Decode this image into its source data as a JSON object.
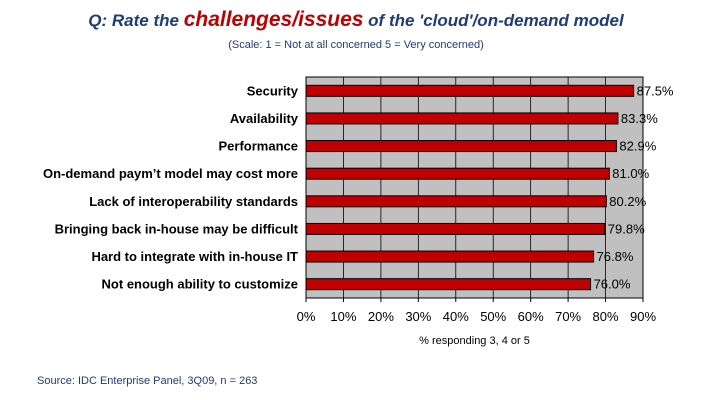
{
  "header": {
    "title_prefix": "Q: Rate the ",
    "title_highlight": "challenges/issues",
    "title_suffix": " of the 'cloud'/on-demand model",
    "subtitle": "(Scale: 1 = Not at all concerned  5 = Very concerned)"
  },
  "source": "Source: IDC Enterprise Panel, 3Q09, n = 263",
  "colors": {
    "bar": "#c00000",
    "plot_bg": "#c0c0c0",
    "title": "#1f3b7a",
    "highlight": "#c00000"
  },
  "chart_data": {
    "type": "bar",
    "orientation": "horizontal",
    "categories": [
      "Security",
      "Availability",
      "Performance",
      "On-demand paym’t model may cost more",
      "Lack of interoperability standards",
      "Bringing back in-house may be difficult",
      "Hard to integrate with in-house IT",
      "Not enough ability to customize"
    ],
    "values": [
      87.5,
      83.3,
      82.9,
      81.0,
      80.2,
      79.8,
      76.8,
      76.0
    ],
    "value_labels": [
      "87.5%",
      "83.3%",
      "82.9%",
      "81.0%",
      "80.2%",
      "79.8%",
      "76.8%",
      "76.0%"
    ],
    "xlim": [
      0,
      90
    ],
    "xticks": [
      "0%",
      "10%",
      "20%",
      "30%",
      "40%",
      "50%",
      "60%",
      "70%",
      "80%",
      "90%"
    ],
    "xlabel": "% responding 3, 4 or 5",
    "grid": true
  }
}
